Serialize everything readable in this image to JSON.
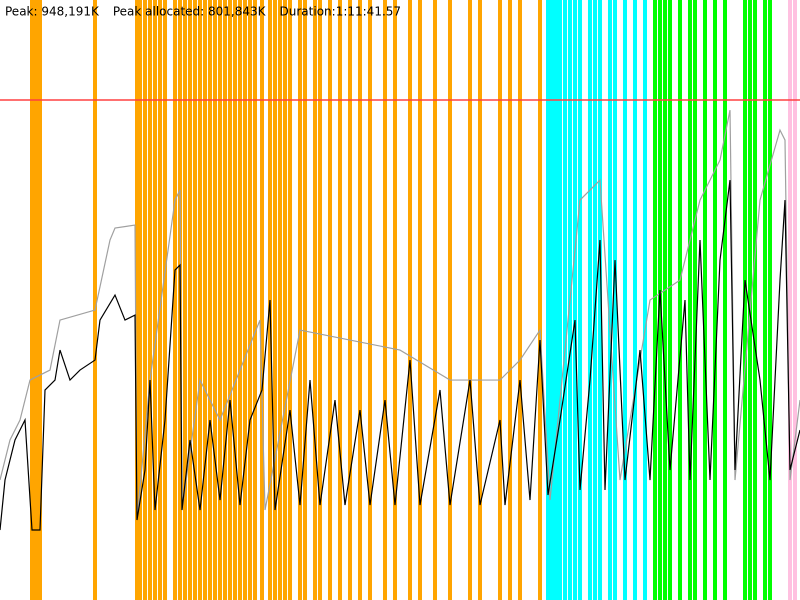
{
  "chart_data": {
    "type": "line",
    "header": [
      "Peak: 948,191K",
      "Peak allocated: 801,843K",
      "Duration:1:11:41.57"
    ],
    "peak": 948191,
    "peak_color": "#ff4040",
    "xlim": [
      0,
      800
    ],
    "ylim": [
      0,
      1137829
    ],
    "events": [
      {
        "color": "#ffa500",
        "x": [
          32,
          36,
          40,
          95,
          137,
          140,
          145,
          150,
          155,
          160,
          165,
          175,
          180,
          185,
          190,
          195,
          200,
          205,
          210,
          215,
          220,
          225,
          230,
          235,
          240,
          245,
          250,
          255,
          262,
          270,
          275,
          280,
          285,
          290,
          300,
          305,
          315,
          320,
          330,
          340,
          350,
          360,
          370,
          385,
          395,
          410,
          420,
          435,
          450,
          470,
          480,
          500,
          510,
          520,
          540
        ]
      },
      {
        "color": "#00ffff",
        "x": [
          548,
          552,
          556,
          560,
          565,
          570,
          575,
          580,
          590,
          595,
          600,
          610,
          615,
          625,
          635,
          645
        ]
      },
      {
        "color": "#00ff00",
        "x": [
          655,
          660,
          665,
          670,
          680,
          690,
          695,
          705,
          715,
          725,
          745,
          750,
          755,
          765,
          770
        ]
      },
      {
        "color": "#ffc0e0",
        "x": [
          790,
          795
        ]
      }
    ],
    "series": [
      {
        "color": "#a0a0a0",
        "x": [
          0,
          10,
          20,
          30,
          50,
          60,
          95,
          110,
          115,
          135,
          137,
          150,
          175,
          180,
          182,
          200,
          220,
          260,
          265,
          300,
          350,
          400,
          450,
          500,
          520,
          540,
          550,
          580,
          600,
          620,
          650,
          680,
          700,
          720,
          730,
          735,
          760,
          780,
          785,
          790,
          800
        ],
        "values": [
          227500,
          303400,
          341300,
          417100,
          436100,
          530900,
          549800,
          682600,
          705300,
          711000,
          151700,
          417100,
          758400,
          777400,
          170600,
          417100,
          341300,
          530900,
          170600,
          511900,
          493000,
          474000,
          417100,
          417100,
          455000,
          511900,
          189600,
          758400,
          796300,
          227500,
          568800,
          606700,
          758400,
          834200,
          929000,
          227500,
          758400,
          891100,
          872200,
          227500,
          379200
        ]
      },
      {
        "color": "#000000",
        "x": [
          0,
          5,
          15,
          25,
          32,
          40,
          45,
          55,
          60,
          70,
          80,
          95,
          100,
          115,
          125,
          135,
          137,
          145,
          150,
          155,
          165,
          175,
          180,
          182,
          190,
          200,
          210,
          220,
          230,
          240,
          250,
          262,
          270,
          275,
          290,
          300,
          310,
          320,
          335,
          345,
          360,
          370,
          385,
          395,
          410,
          420,
          440,
          450,
          470,
          480,
          500,
          505,
          520,
          530,
          540,
          548,
          560,
          575,
          580,
          590,
          600,
          605,
          615,
          625,
          640,
          650,
          660,
          670,
          685,
          690,
          700,
          710,
          720,
          730,
          735,
          745,
          760,
          770,
          780,
          785,
          790,
          800
        ],
        "values": [
          132700,
          227500,
          303400,
          341300,
          132700,
          132700,
          398200,
          417100,
          474000,
          417100,
          436100,
          455000,
          530900,
          578300,
          530900,
          540400,
          151700,
          246500,
          417100,
          170600,
          341300,
          625700,
          635200,
          170600,
          303400,
          170600,
          341300,
          189600,
          379200,
          180100,
          341300,
          398200,
          568800,
          170600,
          360200,
          180100,
          417100,
          180100,
          379200,
          180100,
          360200,
          180100,
          379200,
          180100,
          455000,
          180100,
          398200,
          180100,
          417100,
          180100,
          341300,
          180100,
          417100,
          189600,
          493000,
          199100,
          341300,
          530900,
          208600,
          417100,
          682600,
          208600,
          644600,
          227500,
          474000,
          227500,
          587800,
          246500,
          568800,
          227500,
          682600,
          227500,
          644600,
          796300,
          246500,
          606700,
          417100,
          227500,
          606700,
          758400,
          246500,
          322300
        ]
      }
    ]
  }
}
